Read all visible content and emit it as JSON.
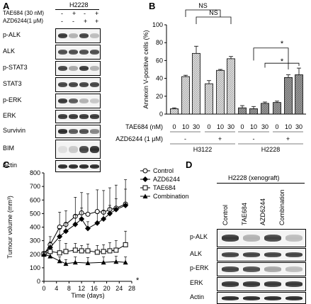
{
  "panels": {
    "a": {
      "letter": "A",
      "cell_line": "H2228",
      "treatments": [
        {
          "label": "TAE684 (30 nM)",
          "signs": [
            "-",
            "+",
            "-",
            "+"
          ]
        },
        {
          "label": "AZD6244(1 μM)",
          "signs": [
            "-",
            "-",
            "+",
            "+"
          ]
        }
      ],
      "blots": [
        "p-ALK",
        "ALK",
        "p-STAT3",
        "STAT3",
        "p-ERK",
        "ERK",
        "Survivin",
        "BIM",
        "Actin"
      ]
    },
    "b": {
      "letter": "B",
      "ylabel": "Annexin V-positive cells (%)",
      "row1_label": "TAE684 (nM)",
      "row2_label": "AZD6244 (1 μM)",
      "cell_lines": [
        "H3122",
        "H2228"
      ],
      "ns_labels": [
        "NS",
        "NS"
      ],
      "star_labels": [
        "*",
        "*"
      ]
    },
    "c": {
      "letter": "C",
      "star": "*"
    },
    "d": {
      "letter": "D",
      "title": "H2228 (xenograft)",
      "lanes": [
        "Control",
        "TAE684",
        "AZD6244",
        "Combination"
      ],
      "blots": [
        "p-ALK",
        "ALK",
        "p-ERK",
        "ERK",
        "Actin"
      ]
    }
  },
  "chart_data": [
    {
      "type": "bar",
      "ylabel": "Annexin V-positive cells (%)",
      "ylim": [
        0,
        100
      ],
      "yticks": [
        0,
        20,
        40,
        60,
        80,
        100
      ],
      "categories": [
        "0",
        "10",
        "30",
        "0",
        "10",
        "30",
        "0",
        "10",
        "30",
        "0",
        "10",
        "30"
      ],
      "azd6244": [
        "-",
        "-",
        "-",
        "+",
        "+",
        "+",
        "-",
        "-",
        "-",
        "+",
        "+",
        "+"
      ],
      "cell_line": [
        "H3122",
        "H3122",
        "H3122",
        "H3122",
        "H3122",
        "H3122",
        "H2228",
        "H2228",
        "H2228",
        "H2228",
        "H2228",
        "H2228"
      ],
      "values": [
        6,
        42,
        68,
        34,
        49,
        62,
        7,
        6,
        12,
        13,
        41,
        44
      ],
      "errors": [
        1,
        1.5,
        8,
        3.5,
        1,
        2.5,
        2.5,
        2.5,
        1.5,
        1.5,
        3,
        7.5
      ]
    },
    {
      "type": "line",
      "xlabel": "Time (days)",
      "ylabel": "Tumour volume (mm³)",
      "xlim": [
        0,
        28
      ],
      "ylim": [
        0,
        800
      ],
      "xticks": [
        0,
        4,
        8,
        12,
        16,
        20,
        24,
        28
      ],
      "yticks": [
        0,
        100,
        200,
        300,
        400,
        500,
        600,
        700,
        800
      ],
      "series": [
        {
          "name": "Control",
          "marker": "circle",
          "x": [
            0,
            2,
            5,
            7,
            10,
            12,
            14,
            17,
            19,
            21,
            23,
            26
          ],
          "y": [
            200,
            270,
            400,
            420,
            480,
            505,
            495,
            515,
            510,
            530,
            540,
            570
          ],
          "err": [
            20,
            60,
            110,
            100,
            140,
            150,
            150,
            160,
            160,
            160,
            170,
            180
          ]
        },
        {
          "name": "AZD6244",
          "marker": "diamond",
          "x": [
            0,
            2,
            5,
            7,
            10,
            12,
            14,
            17,
            19,
            21,
            23,
            26
          ],
          "y": [
            200,
            250,
            330,
            370,
            420,
            460,
            390,
            430,
            460,
            500,
            530,
            560
          ],
          "err": [
            20,
            40,
            60,
            60,
            70,
            80,
            50,
            70,
            60,
            60,
            80,
            120
          ]
        },
        {
          "name": "TAE684",
          "marker": "square",
          "x": [
            0,
            2,
            5,
            7,
            10,
            12,
            14,
            17,
            19,
            21,
            23,
            26
          ],
          "y": [
            200,
            220,
            210,
            220,
            230,
            225,
            225,
            215,
            220,
            225,
            230,
            270
          ],
          "err": [
            20,
            30,
            90,
            60,
            50,
            40,
            50,
            50,
            50,
            60,
            70,
            100
          ]
        },
        {
          "name": "Combination",
          "marker": "triangle",
          "x": [
            0,
            2,
            5,
            7,
            10,
            14,
            19,
            23,
            26
          ],
          "y": [
            200,
            185,
            150,
            130,
            140,
            135,
            140,
            145,
            140
          ],
          "err": [
            15,
            20,
            30,
            30,
            40,
            40,
            40,
            40,
            40
          ]
        }
      ]
    }
  ]
}
